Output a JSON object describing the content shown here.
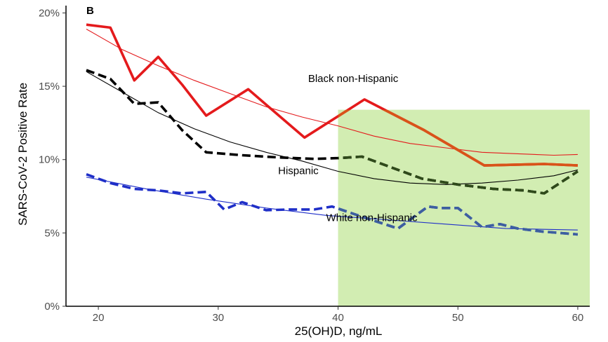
{
  "chart_data": {
    "type": "line",
    "panel_label": "B",
    "xlabel": "25(OH)D, ng/mL",
    "ylabel": "SARS-CoV-2 Positive Rate",
    "xlim": [
      17.3,
      61.0
    ],
    "ylim": [
      0,
      20.5
    ],
    "x_ticks": [
      20,
      30,
      40,
      50,
      60
    ],
    "y_ticks": [
      0,
      5,
      10,
      15,
      20
    ],
    "y_tick_suffix": "%",
    "shaded_region": {
      "x": [
        40,
        61
      ],
      "y": [
        0,
        13.4
      ],
      "color": "#d2edb2"
    },
    "series": [
      {
        "name": "Black non-Hispanic",
        "label": "Black non-Hispanic",
        "label_pos": [
          37.5,
          15.3
        ],
        "color": "#e41a1c",
        "highlight_color": "#d95319",
        "style": "solid-thick",
        "observed_x": [
          19,
          21,
          23,
          25,
          27,
          29,
          32.5,
          37.2,
          42.2,
          47.2,
          52.2,
          57.2,
          60
        ],
        "observed_y": [
          19.2,
          19,
          15.4,
          17,
          15.1,
          13,
          14.8,
          11.5,
          14.1,
          12,
          9.6,
          9.7,
          9.6
        ],
        "fitted_x": [
          19,
          22,
          25,
          28,
          31,
          34,
          37,
          40,
          43,
          46,
          49,
          52,
          55,
          58,
          60
        ],
        "fitted_y": [
          18.9,
          17.5,
          16.4,
          15.4,
          14.5,
          13.6,
          12.9,
          12.3,
          11.6,
          11.1,
          10.8,
          10.5,
          10.4,
          10.3,
          10.35
        ]
      },
      {
        "name": "Hispanic",
        "label": "Hispanic",
        "label_pos": [
          35,
          9.0
        ],
        "color": "#000000",
        "highlight_color": "#2f4a1a",
        "style": "dashed-thick",
        "observed_x": [
          19,
          21,
          23,
          25,
          27,
          29,
          32,
          35,
          38,
          40,
          42,
          47,
          50,
          53,
          55.5,
          57.2,
          60
        ],
        "observed_y": [
          16.1,
          15.5,
          13.8,
          13.9,
          12.0,
          10.5,
          10.3,
          10.15,
          10.05,
          10.1,
          10.2,
          8.7,
          8.3,
          8.0,
          7.9,
          7.7,
          9.2
        ],
        "fitted_x": [
          19,
          22,
          25,
          28,
          31,
          34,
          37,
          40,
          43,
          46,
          49,
          52,
          55,
          58,
          60
        ],
        "fitted_y": [
          16.0,
          14.6,
          13.2,
          12.1,
          11.2,
          10.5,
          9.9,
          9.2,
          8.7,
          8.4,
          8.3,
          8.4,
          8.6,
          8.9,
          9.3
        ]
      },
      {
        "name": "White non-Hispanic",
        "label": "White non-Hispanic",
        "label_pos": [
          39,
          5.8
        ],
        "color": "#1f2fc8",
        "highlight_color": "#3d5fa0",
        "style": "dashed-thick",
        "observed_x": [
          19,
          21,
          23,
          25,
          27,
          28,
          29,
          30.5,
          32,
          34,
          36,
          38,
          39.5,
          42,
          45,
          47.5,
          48.5,
          50,
          52,
          53.5,
          55,
          57,
          60
        ],
        "observed_y": [
          9.0,
          8.4,
          8.0,
          7.9,
          7.7,
          7.75,
          7.8,
          6.6,
          7.1,
          6.55,
          6.6,
          6.6,
          6.8,
          6.1,
          5.3,
          6.8,
          6.7,
          6.7,
          5.4,
          5.6,
          5.3,
          5.1,
          4.9
        ],
        "fitted_x": [
          19,
          24,
          29,
          34,
          39,
          44,
          49,
          54,
          60
        ],
        "fitted_y": [
          8.8,
          8.0,
          7.3,
          6.7,
          6.2,
          5.9,
          5.6,
          5.3,
          5.2
        ]
      }
    ]
  }
}
